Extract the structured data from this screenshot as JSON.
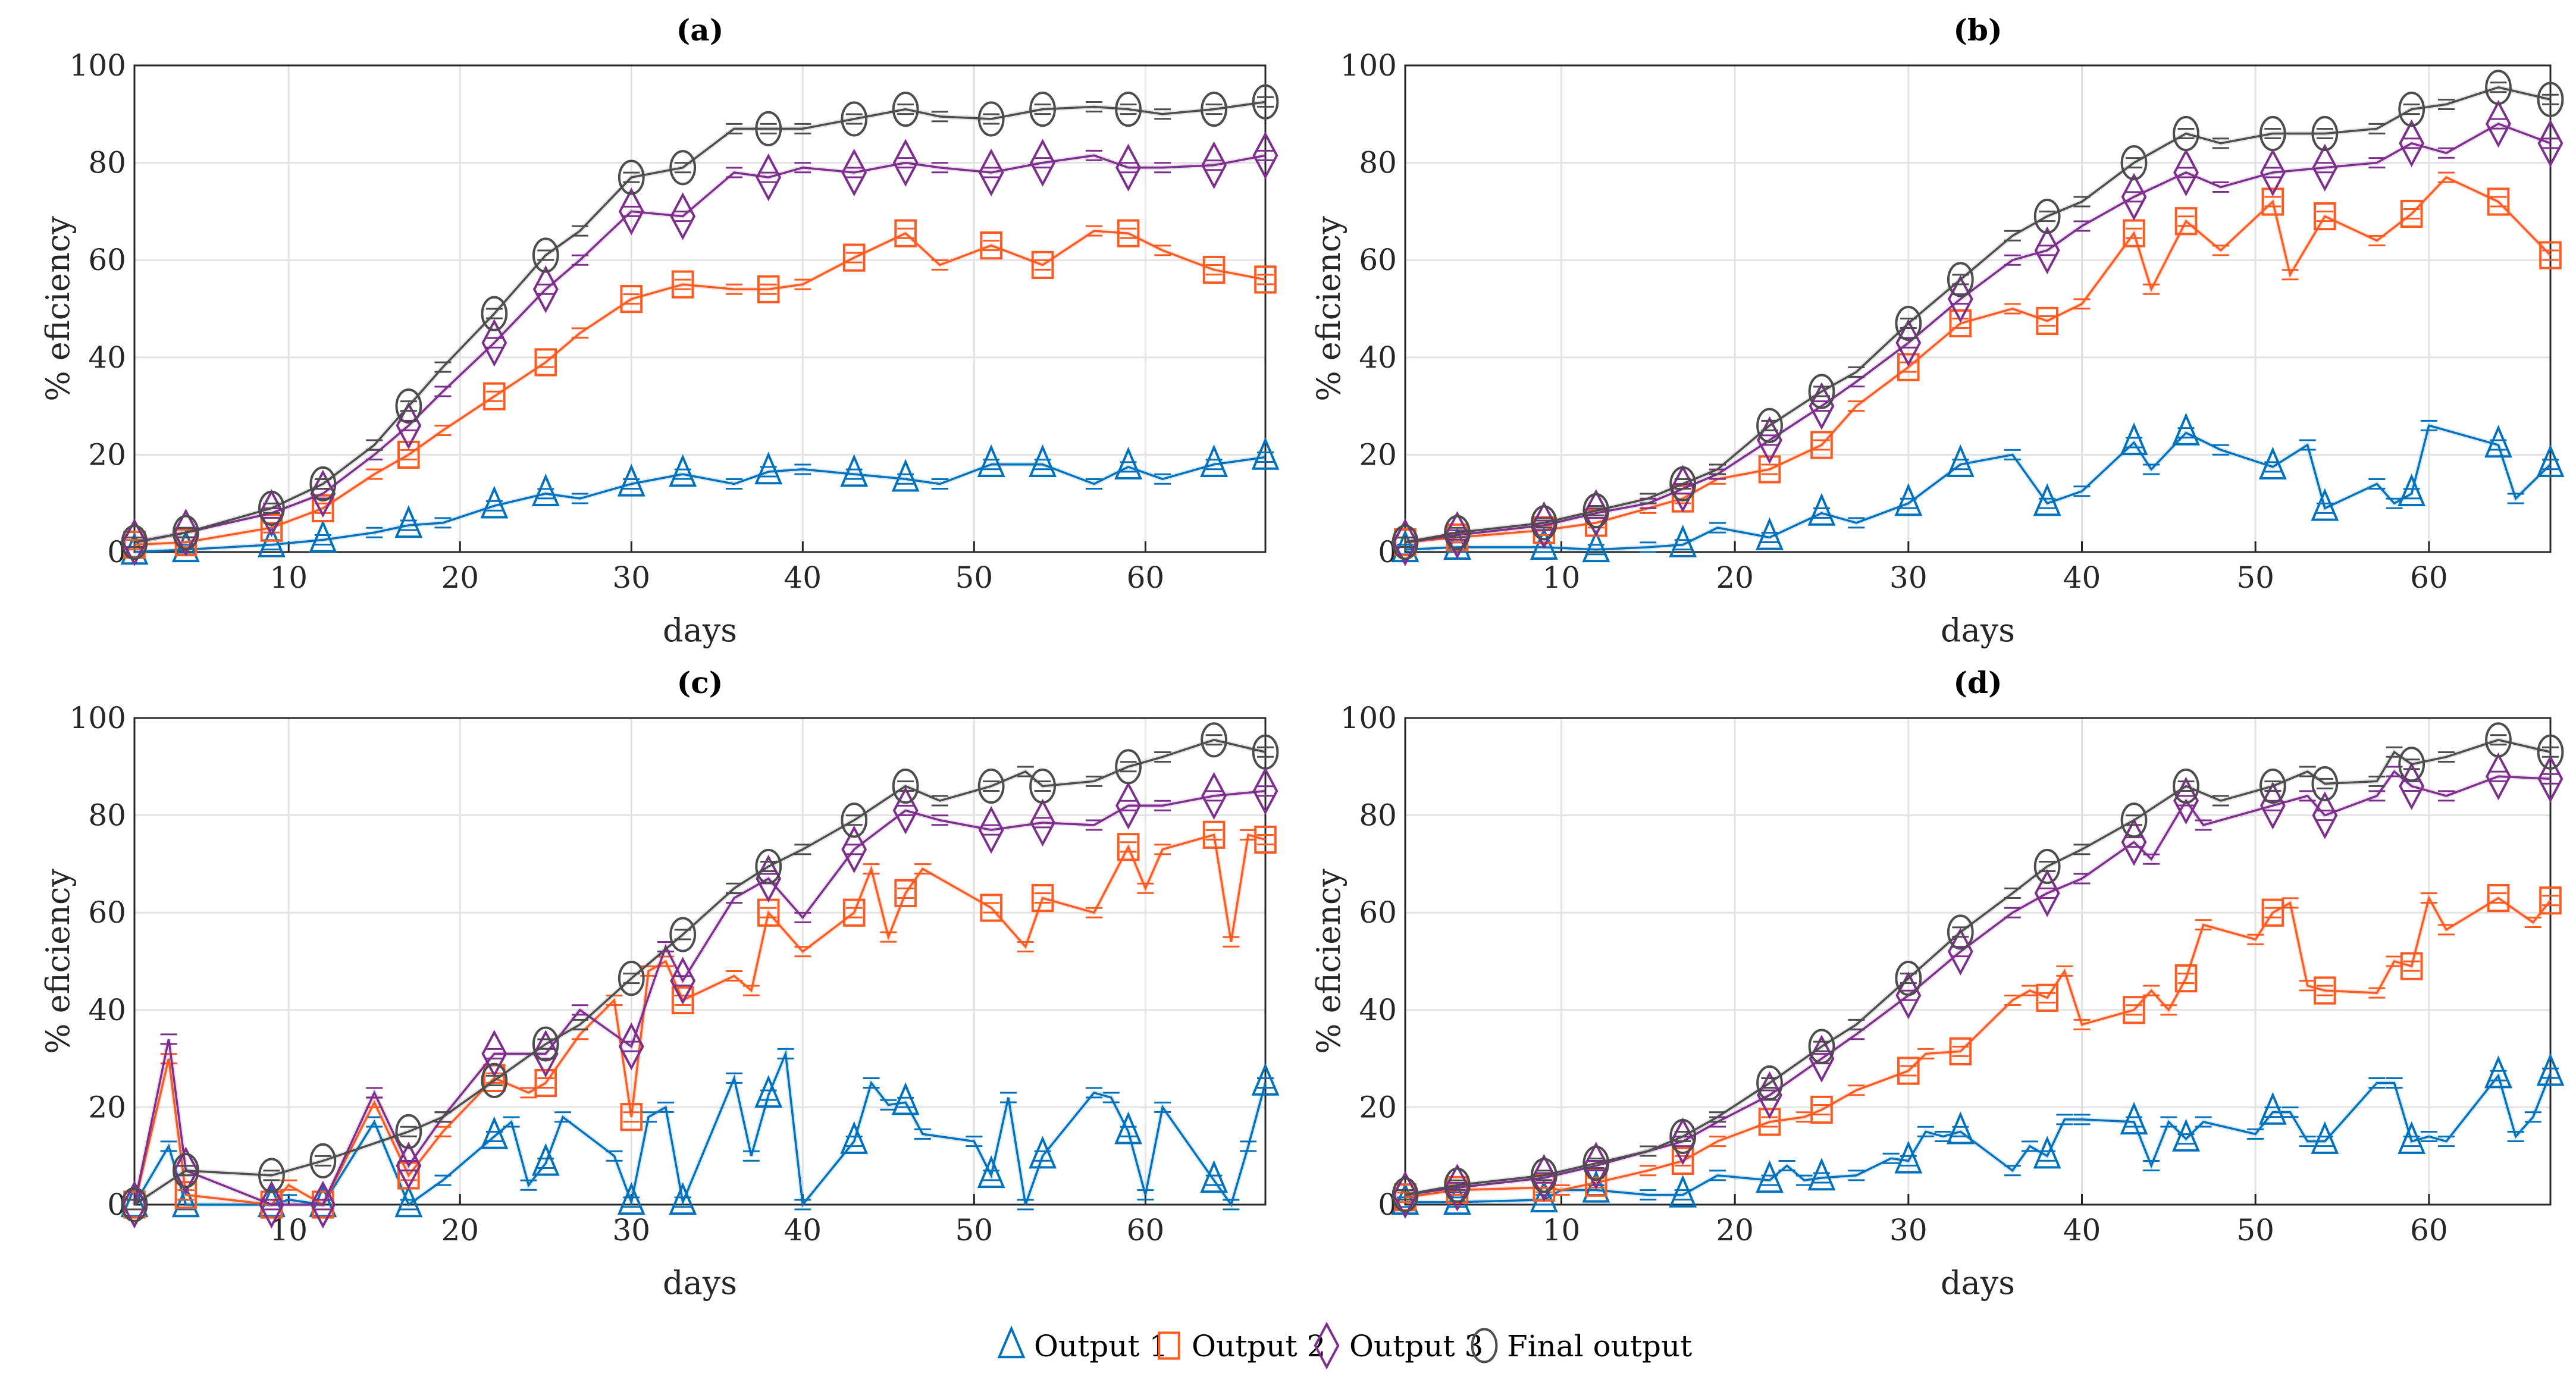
{
  "chart_data": [
    {
      "type": "line",
      "title": "(a)",
      "xlabel": "days",
      "ylabel": "% eficiency",
      "xlim": [
        1,
        67
      ],
      "ylim": [
        0,
        100
      ],
      "xticks": [
        10,
        20,
        30,
        40,
        50,
        60
      ],
      "yticks": [
        0,
        20,
        40,
        60,
        80,
        100
      ],
      "grid": true,
      "series": [
        {
          "name": "Output 1",
          "x": [
            1,
            4,
            9,
            12,
            15,
            17,
            19,
            22,
            25,
            27,
            30,
            33,
            36,
            38,
            40,
            43,
            46,
            48,
            51,
            54,
            57,
            59,
            61,
            64,
            67
          ],
          "y": [
            0,
            0.5,
            1.5,
            2.5,
            4,
            5.5,
            6,
            9.5,
            12,
            11,
            14,
            16,
            14,
            16.5,
            17,
            16,
            15,
            14,
            18,
            18,
            14,
            17.5,
            15,
            18,
            19.5
          ]
        },
        {
          "name": "Output 2",
          "x": [
            1,
            4,
            9,
            12,
            15,
            17,
            19,
            22,
            25,
            27,
            30,
            33,
            36,
            38,
            40,
            43,
            46,
            48,
            51,
            54,
            57,
            59,
            61,
            64,
            67
          ],
          "y": [
            1.5,
            2,
            5,
            9,
            16,
            20,
            25,
            32,
            39,
            45,
            52,
            55,
            54,
            54,
            55,
            60.5,
            65.5,
            59,
            63,
            59,
            66,
            65.5,
            62,
            58,
            56
          ]
        },
        {
          "name": "Output 3",
          "x": [
            1,
            4,
            9,
            12,
            15,
            17,
            19,
            22,
            25,
            27,
            30,
            33,
            36,
            38,
            40,
            43,
            46,
            48,
            51,
            54,
            57,
            59,
            61,
            64,
            67
          ],
          "y": [
            2,
            4,
            8,
            12,
            20,
            26,
            33,
            43,
            54,
            60,
            70,
            69,
            78,
            77,
            79,
            78,
            80,
            79,
            78,
            80,
            81.5,
            79,
            79,
            79.5,
            81.5
          ]
        },
        {
          "name": "Final output",
          "x": [
            1,
            4,
            9,
            12,
            15,
            17,
            19,
            22,
            25,
            27,
            30,
            33,
            36,
            38,
            40,
            43,
            46,
            48,
            51,
            54,
            57,
            59,
            61,
            64,
            67
          ],
          "y": [
            2,
            4,
            9,
            14,
            22,
            30,
            38,
            49,
            61,
            66,
            77,
            79,
            87,
            87,
            87,
            89,
            91,
            89.5,
            89,
            91,
            91.5,
            91,
            90,
            91,
            92.5
          ]
        }
      ]
    },
    {
      "type": "line",
      "title": "(b)",
      "xlabel": "days",
      "ylabel": "% eficiency",
      "xlim": [
        1,
        67
      ],
      "ylim": [
        0,
        100
      ],
      "xticks": [
        10,
        20,
        30,
        40,
        50,
        60
      ],
      "yticks": [
        0,
        20,
        40,
        60,
        80,
        100
      ],
      "grid": true,
      "series": [
        {
          "name": "Output 1",
          "x": [
            1,
            4,
            9,
            12,
            15,
            17,
            19,
            22,
            25,
            27,
            30,
            33,
            36,
            38,
            40,
            43,
            44,
            46,
            48,
            51,
            53,
            54,
            57,
            58,
            59,
            60,
            64,
            65,
            67
          ],
          "y": [
            0.5,
            1,
            1,
            0.5,
            1,
            1.5,
            5,
            3,
            8,
            6,
            10,
            18,
            20,
            10,
            12.5,
            22.5,
            17,
            24.5,
            21,
            17.5,
            22,
            9,
            14,
            10,
            12,
            26,
            22,
            11,
            18
          ]
        },
        {
          "name": "Output 2",
          "x": [
            1,
            4,
            9,
            12,
            15,
            17,
            19,
            22,
            25,
            27,
            30,
            33,
            36,
            38,
            40,
            43,
            44,
            46,
            48,
            51,
            52,
            54,
            57,
            59,
            61,
            64,
            67
          ],
          "y": [
            2,
            3,
            4.5,
            6,
            9,
            11,
            15,
            17,
            22,
            30,
            38,
            47,
            50,
            47.5,
            51,
            65.5,
            54,
            68,
            62,
            72,
            57,
            69,
            64,
            69.5,
            77,
            72,
            61
          ]
        },
        {
          "name": "Output 3",
          "x": [
            1,
            4,
            9,
            12,
            15,
            17,
            19,
            22,
            25,
            27,
            30,
            33,
            36,
            38,
            40,
            43,
            46,
            48,
            51,
            54,
            57,
            59,
            61,
            64,
            67
          ],
          "y": [
            2,
            3.5,
            5.5,
            8,
            10,
            13,
            16,
            23,
            30,
            35,
            43,
            52,
            60,
            62,
            67,
            73,
            78,
            75,
            78,
            79,
            80,
            84,
            82,
            88,
            84
          ]
        },
        {
          "name": "Final output",
          "x": [
            1,
            4,
            9,
            12,
            15,
            17,
            19,
            22,
            25,
            27,
            30,
            33,
            36,
            38,
            40,
            43,
            46,
            48,
            51,
            54,
            57,
            59,
            61,
            64,
            67
          ],
          "y": [
            2,
            4,
            6,
            8.5,
            11,
            14,
            17,
            26,
            33,
            37,
            47,
            56,
            65,
            69,
            72,
            80,
            86,
            84,
            86,
            86,
            87,
            91,
            92,
            95.5,
            93
          ]
        }
      ]
    },
    {
      "type": "line",
      "title": "(c)",
      "xlabel": "days",
      "ylabel": "% eficiency",
      "xlim": [
        1,
        67
      ],
      "ylim": [
        0,
        100
      ],
      "xticks": [
        10,
        20,
        30,
        40,
        50,
        60
      ],
      "yticks": [
        0,
        20,
        40,
        60,
        80,
        100
      ],
      "grid": true,
      "series": [
        {
          "name": "Output 1",
          "x": [
            1,
            3,
            4,
            9,
            10,
            12,
            15,
            17,
            19,
            22,
            23,
            24,
            25,
            26,
            29,
            30,
            31,
            32,
            33,
            36,
            37,
            38,
            39,
            40,
            43,
            44,
            45,
            46,
            47,
            50,
            51,
            52,
            53,
            54,
            57,
            58,
            59,
            60,
            61,
            64,
            65,
            66,
            67
          ],
          "y": [
            0,
            12,
            0,
            0,
            1,
            0,
            17,
            0,
            5,
            14,
            17,
            4,
            8.5,
            18,
            10,
            0.5,
            18,
            20,
            0.5,
            26,
            10,
            22.5,
            31,
            0,
            13,
            25,
            20.5,
            21,
            14.5,
            13,
            6,
            22,
            0,
            10,
            23,
            22,
            15,
            2,
            20,
            5,
            0,
            12,
            25
          ]
        },
        {
          "name": "Output 2",
          "x": [
            1,
            3,
            4,
            9,
            10,
            12,
            15,
            17,
            19,
            22,
            24,
            25,
            27,
            29,
            30,
            31,
            32,
            33,
            36,
            37,
            38,
            40,
            43,
            44,
            45,
            46,
            47,
            51,
            53,
            54,
            57,
            59,
            60,
            61,
            64,
            65,
            66,
            67
          ],
          "y": [
            0,
            30,
            2,
            0,
            4,
            0,
            21,
            6,
            15,
            26,
            23,
            25,
            35,
            42,
            18,
            48,
            50,
            42,
            47,
            44,
            60,
            52,
            60,
            69,
            55,
            64,
            69,
            61,
            53,
            63,
            60,
            73.5,
            65,
            73,
            76,
            54,
            76,
            75
          ]
        },
        {
          "name": "Output 3",
          "x": [
            1,
            3,
            4,
            9,
            12,
            15,
            17,
            19,
            22,
            25,
            27,
            30,
            32,
            33,
            36,
            38,
            40,
            43,
            46,
            48,
            51,
            54,
            57,
            59,
            61,
            64,
            67
          ],
          "y": [
            0,
            34,
            7,
            0,
            0,
            23,
            8,
            18,
            31,
            31,
            40,
            32.5,
            53,
            46,
            63,
            67,
            59,
            73,
            81,
            79,
            77,
            78.5,
            78,
            82,
            82,
            84,
            85
          ]
        },
        {
          "name": "Final output",
          "x": [
            1,
            4,
            9,
            12,
            17,
            19,
            22,
            25,
            27,
            30,
            33,
            36,
            38,
            40,
            43,
            46,
            48,
            51,
            53,
            54,
            57,
            59,
            61,
            64,
            67
          ],
          "y": [
            0,
            7,
            6,
            9,
            15,
            18,
            25.5,
            33,
            37,
            46.5,
            55.5,
            65,
            69.5,
            73,
            79,
            86,
            83,
            86,
            89,
            86,
            87,
            90,
            92,
            95.5,
            93
          ]
        }
      ]
    },
    {
      "type": "line",
      "title": "(d)",
      "xlabel": "days",
      "ylabel": "% eficiency",
      "xlim": [
        1,
        67
      ],
      "ylim": [
        0,
        100
      ],
      "xticks": [
        10,
        20,
        30,
        40,
        50,
        60
      ],
      "yticks": [
        0,
        20,
        40,
        60,
        80,
        100
      ],
      "grid": true,
      "series": [
        {
          "name": "Output 1",
          "x": [
            1,
            4,
            9,
            10,
            12,
            15,
            17,
            19,
            22,
            23,
            24,
            25,
            27,
            29,
            30,
            31,
            32,
            33,
            36,
            37,
            38,
            39,
            40,
            43,
            44,
            45,
            46,
            47,
            50,
            51,
            52,
            53,
            54,
            57,
            58,
            59,
            60,
            61,
            64,
            65,
            66,
            67
          ],
          "y": [
            0.5,
            0.5,
            1,
            3,
            3,
            2,
            2,
            6,
            5,
            8,
            5,
            5.5,
            6,
            9.5,
            9,
            15,
            14,
            15,
            7,
            12,
            10,
            17.5,
            17.5,
            17,
            8,
            17,
            13.5,
            17,
            14.5,
            19,
            19,
            13,
            13,
            25,
            25,
            13,
            14,
            13,
            26.5,
            14,
            18,
            27
          ]
        },
        {
          "name": "Output 2",
          "x": [
            1,
            4,
            9,
            10,
            12,
            15,
            17,
            19,
            22,
            24,
            25,
            27,
            30,
            31,
            33,
            36,
            37,
            38,
            39,
            40,
            43,
            44,
            45,
            46,
            47,
            50,
            51,
            52,
            53,
            54,
            57,
            58,
            59,
            60,
            61,
            64,
            66,
            67
          ],
          "y": [
            1.5,
            3,
            3.5,
            3,
            4.5,
            7,
            9,
            13,
            17,
            18,
            19.5,
            23.5,
            27.5,
            31,
            31.5,
            42,
            44,
            42.5,
            48,
            37,
            40,
            44,
            40,
            46.5,
            57.5,
            54.5,
            60,
            62,
            45,
            44,
            43.5,
            50,
            49,
            63,
            56.5,
            63,
            58,
            62.5
          ]
        },
        {
          "name": "Output 3",
          "x": [
            1,
            4,
            9,
            12,
            15,
            17,
            19,
            22,
            25,
            27,
            30,
            33,
            36,
            38,
            40,
            43,
            44,
            46,
            47,
            51,
            53,
            54,
            57,
            58,
            59,
            61,
            64,
            67
          ],
          "y": [
            2,
            3.5,
            5.5,
            8,
            11,
            13,
            17,
            22.5,
            30,
            35,
            43,
            52,
            60,
            64,
            67,
            74.5,
            71,
            83,
            78,
            82,
            84,
            80,
            84,
            89,
            86,
            84,
            88,
            87.5
          ]
        },
        {
          "name": "Final output",
          "x": [
            1,
            4,
            9,
            12,
            15,
            17,
            19,
            22,
            25,
            27,
            30,
            33,
            36,
            38,
            40,
            43,
            46,
            48,
            51,
            53,
            54,
            57,
            58,
            59,
            61,
            64,
            67
          ],
          "y": [
            2,
            4,
            6,
            8.5,
            11,
            14,
            18,
            25,
            32.5,
            37,
            46.5,
            56,
            64,
            69.5,
            73,
            79,
            86,
            83,
            86,
            89,
            86.5,
            87,
            93,
            90.5,
            92,
            95.5,
            93
          ]
        }
      ]
    }
  ],
  "marker_days": [
    1,
    4,
    9,
    12,
    17,
    22,
    25,
    30,
    33,
    38,
    43,
    46,
    51,
    54,
    59,
    64,
    67
  ],
  "colors": {
    "Output 1": "#0072BD",
    "Output 2": "#FF5A1F",
    "Output 3": "#7E2F8E",
    "Final output": "#4D4D4D"
  },
  "markers": {
    "Output 1": "triangle-icon",
    "Output 2": "square-icon",
    "Output 3": "diamond-icon",
    "Final output": "circle-icon"
  },
  "legend": {
    "placement": "bottom-center",
    "items": [
      "Output 1",
      "Output 2",
      "Output 3",
      "Final output"
    ]
  }
}
